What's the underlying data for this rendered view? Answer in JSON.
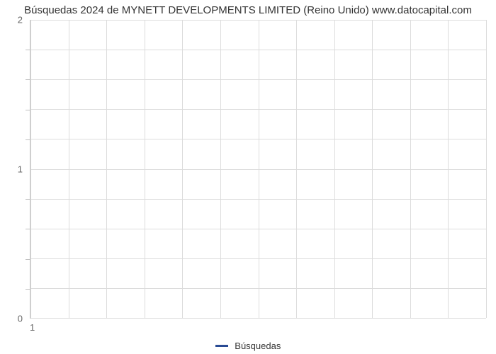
{
  "chart": {
    "type": "line",
    "title": "Búsquedas 2024 de MYNETT DEVELOPMENTS LIMITED (Reino Unido) www.datocapital.com",
    "title_fontsize": 15,
    "title_color": "#333333",
    "background_color": "#ffffff",
    "plot_background_color": "#ffffff",
    "grid_color": "#dcdcdc",
    "axis_color": "#c0c0c0",
    "tick_font_color": "#666666",
    "tick_fontsize": 13,
    "xlim": [
      1,
      12
    ],
    "ylim": [
      0,
      2
    ],
    "xticks_major": [
      1
    ],
    "yticks_major": [
      0,
      1,
      2
    ],
    "y_minor_divisions": 5,
    "x_gridlines_count": 12,
    "y_gridlines_count": 10,
    "series": [
      {
        "name": "Búsquedas",
        "color": "#294b94",
        "line_width": 2,
        "data": []
      }
    ],
    "legend": {
      "position": "bottom-center",
      "label": "Búsquedas",
      "swatch_color": "#294b94"
    }
  }
}
